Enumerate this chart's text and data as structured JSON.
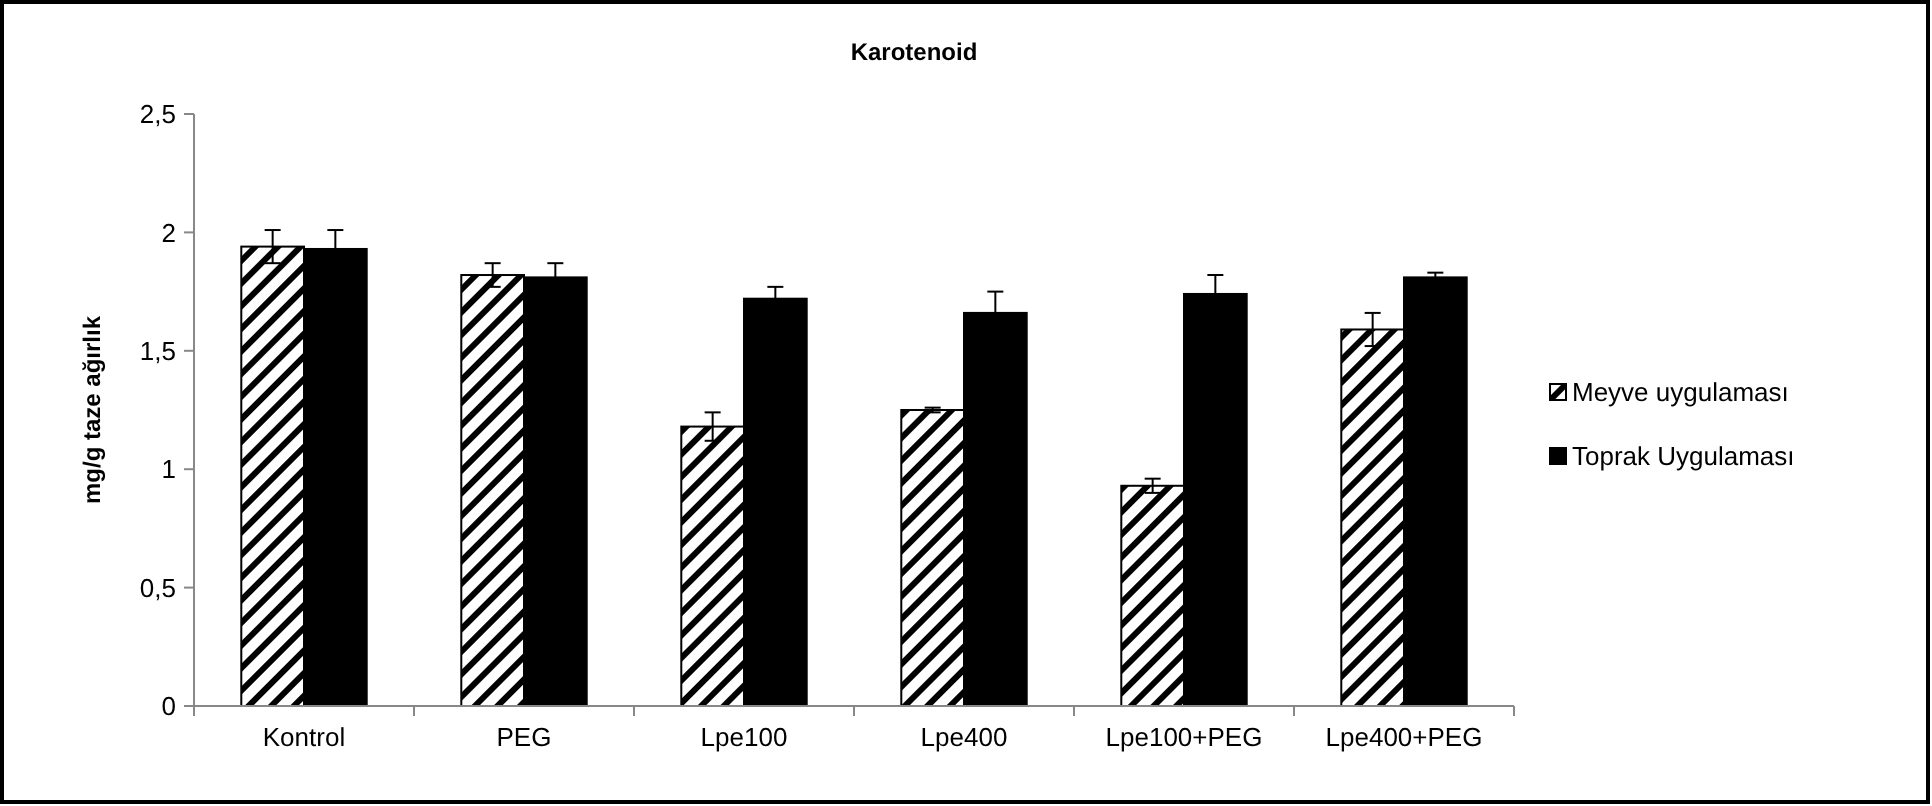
{
  "chart_data": {
    "type": "bar",
    "title": "Karotenoid",
    "ylabel": "mg/g taze ağırlık",
    "categories": [
      "Kontrol",
      "PEG",
      "Lpe100",
      "Lpe400",
      "Lpe100+PEG",
      "Lpe400+PEG"
    ],
    "series": [
      {
        "name": "Meyve uygulaması",
        "color": "#ffffff",
        "values": [
          1.94,
          1.82,
          1.18,
          1.25,
          0.93,
          1.59
        ],
        "errors": [
          0.07,
          0.05,
          0.06,
          0.01,
          0.03,
          0.07
        ]
      },
      {
        "name": "Toprak Uygulaması",
        "color": "#000000",
        "values": [
          1.93,
          1.81,
          1.72,
          1.66,
          1.74,
          1.81
        ],
        "errors": [
          0.08,
          0.06,
          0.05,
          0.09,
          0.08,
          0.02
        ]
      }
    ],
    "ylim": [
      0,
      2.5
    ],
    "yticks": [
      {
        "value": 0,
        "label": "0"
      },
      {
        "value": 0.5,
        "label": "0,5"
      },
      {
        "value": 1,
        "label": "1"
      },
      {
        "value": 1.5,
        "label": "1,5"
      },
      {
        "value": 2,
        "label": "2"
      },
      {
        "value": 2.5,
        "label": "2,5"
      }
    ],
    "grid": false,
    "legend": "right"
  }
}
